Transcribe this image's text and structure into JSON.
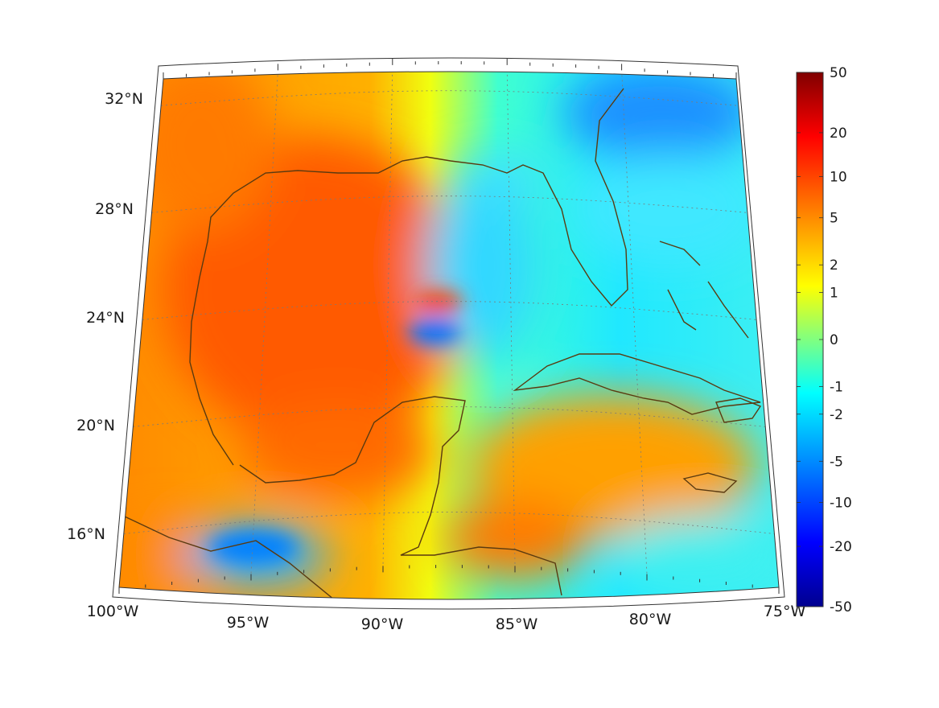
{
  "map": {
    "projection": "conic",
    "lon_range": [
      -100,
      -75
    ],
    "lat_range": [
      14,
      33
    ],
    "grid": true,
    "coastlines": true,
    "coast_color": "#5a3a10",
    "grid_color": "#808080"
  },
  "latitude_labels": [
    {
      "lat": 32,
      "text": "32°N"
    },
    {
      "lat": 28,
      "text": "28°N"
    },
    {
      "lat": 24,
      "text": "24°N"
    },
    {
      "lat": 20,
      "text": "20°N"
    },
    {
      "lat": 16,
      "text": "16°N"
    }
  ],
  "longitude_labels": [
    {
      "lon": -100,
      "text": "100°W"
    },
    {
      "lon": -95,
      "text": "95°W"
    },
    {
      "lon": -90,
      "text": "90°W"
    },
    {
      "lon": -85,
      "text": "85°W"
    },
    {
      "lon": -80,
      "text": "80°W"
    },
    {
      "lon": -75,
      "text": "75°W"
    }
  ],
  "colorbar": {
    "colormap": "jet",
    "placement": "right",
    "scale": "symmetric-log",
    "range": [
      -50,
      50
    ],
    "colors": [
      "#00008f",
      "#0000ff",
      "#0080ff",
      "#00ffff",
      "#80ff80",
      "#ffff00",
      "#ff8000",
      "#ff0000",
      "#800000"
    ],
    "ticks": [
      {
        "value": 50,
        "text": "50"
      },
      {
        "value": 20,
        "text": "20"
      },
      {
        "value": 10,
        "text": "10"
      },
      {
        "value": 5,
        "text": "5"
      },
      {
        "value": 2,
        "text": "2"
      },
      {
        "value": 1,
        "text": "1"
      },
      {
        "value": 0,
        "text": "0"
      },
      {
        "value": -1,
        "text": "-1"
      },
      {
        "value": -2,
        "text": "-2"
      },
      {
        "value": -5,
        "text": "-5"
      },
      {
        "value": -10,
        "text": "-10"
      },
      {
        "value": -20,
        "text": "-20"
      },
      {
        "value": -50,
        "text": "-50"
      }
    ]
  },
  "field_regions": [
    {
      "region": "western-gulf",
      "level": "orange-red"
    },
    {
      "region": "eastern-gulf",
      "level": "cyan-green"
    },
    {
      "region": "atlantic-north",
      "level": "cyan-blue"
    },
    {
      "region": "caribbean",
      "level": "yellow-orange"
    },
    {
      "region": "eastern-pacific",
      "level": "orange"
    }
  ]
}
